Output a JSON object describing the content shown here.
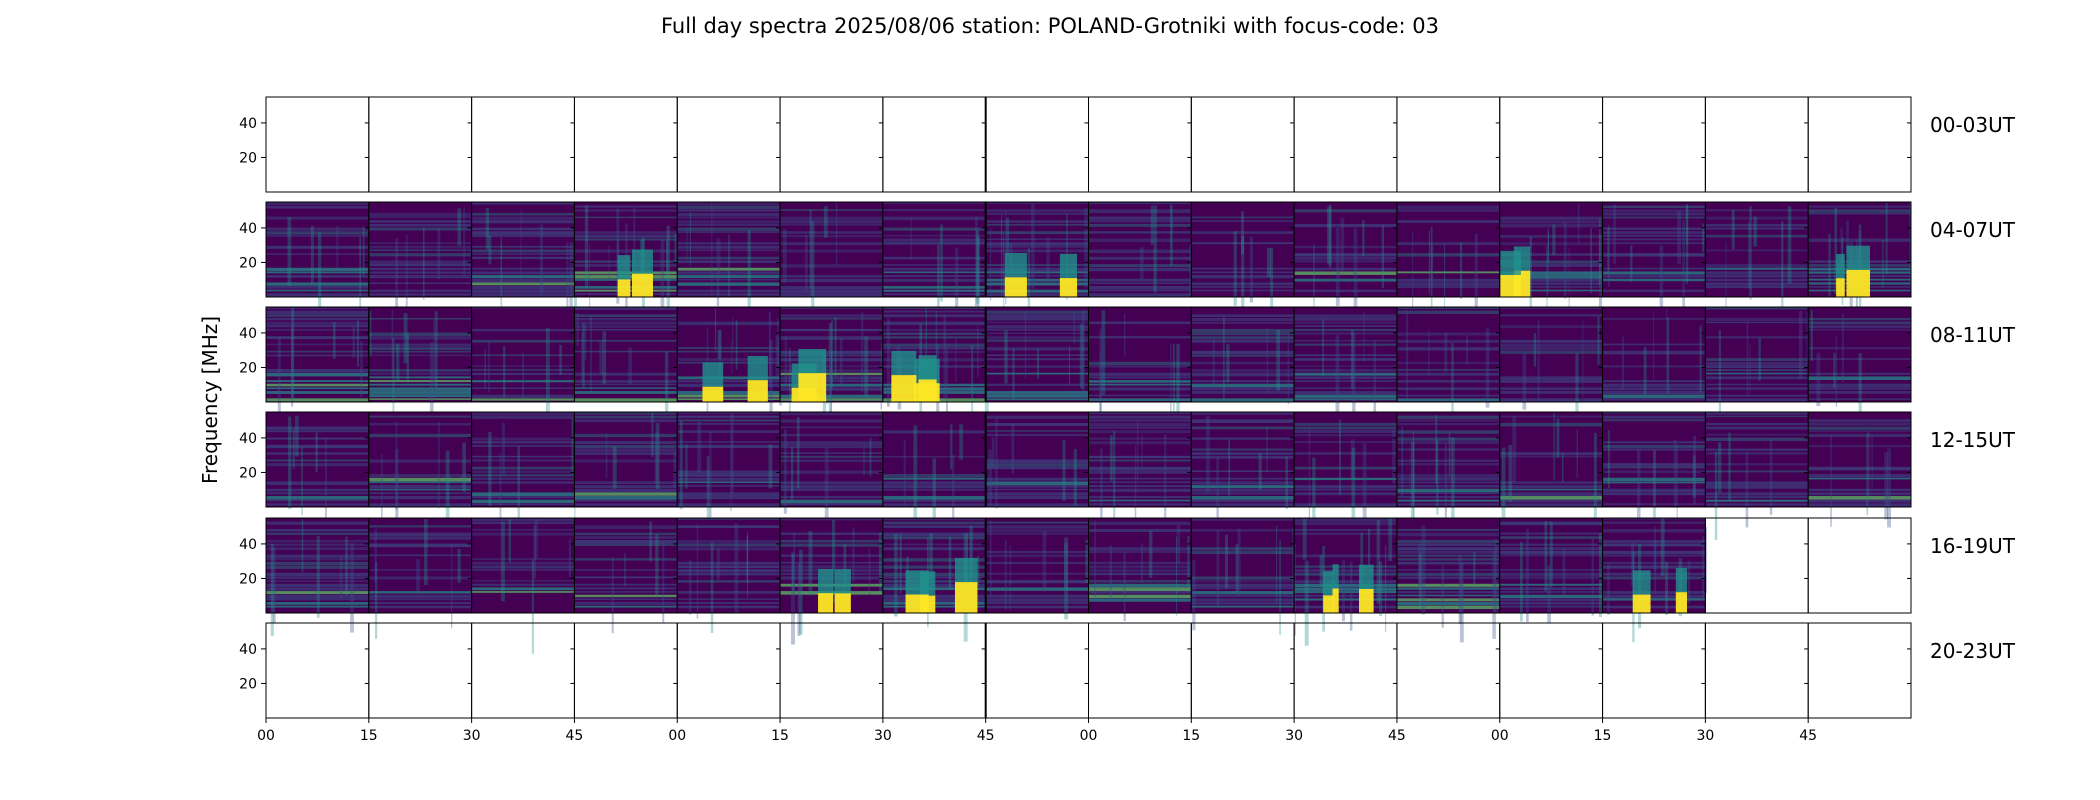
{
  "chart_data": {
    "type": "heatmap",
    "title": "Full day spectra 2025/08/06 station: POLAND-Grotniki with focus-code: 03",
    "ylabel": "Frequency [MHz]",
    "xlabel": "",
    "y_ticks": [
      "40",
      "20"
    ],
    "x_ticks": [
      "00",
      "15",
      "30",
      "45",
      "00",
      "15",
      "30",
      "45",
      "00",
      "15",
      "30",
      "45",
      "00",
      "15",
      "30",
      "45"
    ],
    "ylim": [
      0,
      55
    ],
    "panels_per_row": 16,
    "colormap": [
      "#440154",
      "#3b528b",
      "#21918c",
      "#5ec962",
      "#fde725"
    ],
    "rows": [
      {
        "label": "00-03UT",
        "available": 0,
        "activity": []
      },
      {
        "label": "04-07UT",
        "available": 16,
        "activity": [
          0.3,
          0.3,
          0.5,
          0.95,
          0.4,
          0.3,
          0.4,
          0.8,
          0.3,
          0.3,
          0.5,
          0.4,
          0.8,
          0.7,
          0.4,
          0.9
        ]
      },
      {
        "label": "08-11UT",
        "available": 16,
        "activity": [
          0.45,
          0.6,
          0.3,
          0.6,
          0.9,
          0.9,
          1.0,
          0.5,
          0.4,
          0.3,
          0.3,
          0.3,
          0.3,
          0.3,
          0.3,
          0.3
        ]
      },
      {
        "label": "12-15UT",
        "available": 16,
        "activity": [
          0.3,
          0.3,
          0.3,
          0.3,
          0.5,
          0.3,
          0.3,
          0.3,
          0.4,
          0.3,
          0.4,
          0.5,
          0.5,
          0.4,
          0.3,
          0.3
        ]
      },
      {
        "label": "16-19UT",
        "available": 14,
        "activity": [
          0.4,
          0.3,
          0.3,
          0.3,
          0.4,
          0.9,
          1.0,
          0.4,
          0.5,
          0.5,
          1.0,
          0.6,
          0.5,
          0.9
        ]
      },
      {
        "label": "20-23UT",
        "available": 0,
        "activity": []
      }
    ]
  }
}
